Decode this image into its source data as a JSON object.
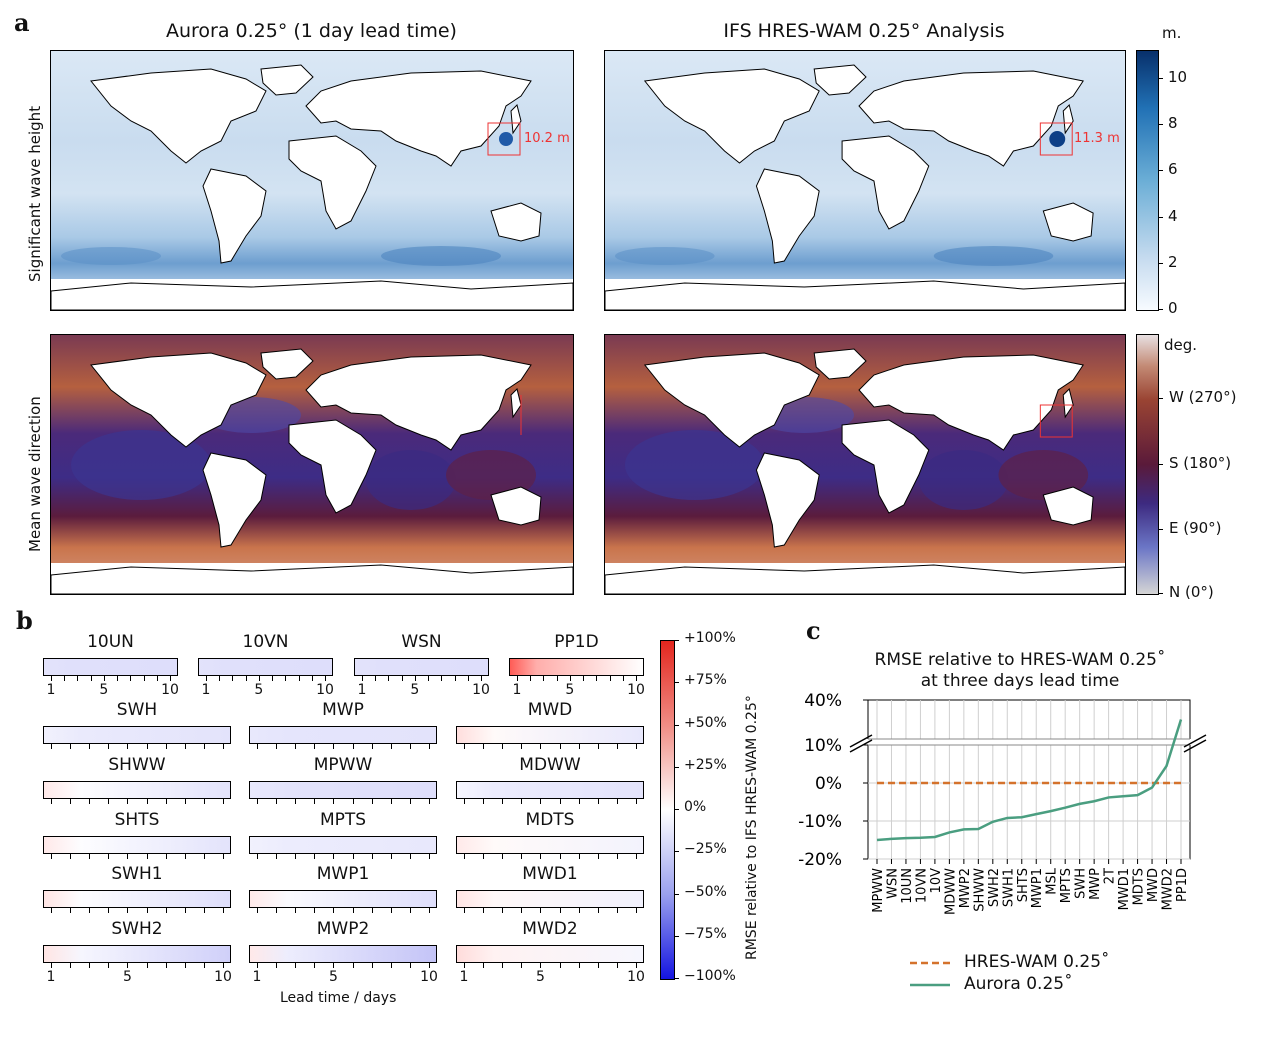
{
  "panel_a": {
    "label": "a",
    "left_title": "Aurora 0.25° (1 day lead time)",
    "right_title": "IFS HRES-WAM 0.25° Analysis",
    "row1_label": "Significant wave height",
    "row2_label": "Mean wave direction",
    "left_annotation": "10.2 m",
    "right_annotation": "11.3 m",
    "swh_colorbar": {
      "unit": "m.",
      "ticks": [
        "10",
        "8",
        "6",
        "4",
        "2",
        "0"
      ],
      "range": [
        0,
        11.2
      ],
      "colors": [
        "#f7fbff",
        "#c6dbef",
        "#6baed6",
        "#2171b5",
        "#08306b"
      ]
    },
    "mwd_colorbar": {
      "unit": "deg.",
      "ticks": [
        "W (270°)",
        "S (180°)",
        "E (90°)",
        "N (0°)"
      ],
      "colors": [
        "#e8e0e2",
        "#b5603f",
        "#5a1a3a",
        "#3d2a80",
        "#6b76c6",
        "#d5d5d5"
      ]
    }
  },
  "panel_b": {
    "label": "b",
    "xlabel": "Lead time / days",
    "colorbar_label": "RMSE relative to IFS HRES-WAM 0.25°",
    "colorbar_ticks": [
      "+100%",
      "+75%",
      "+50%",
      "+25%",
      "0%",
      "−25%",
      "−50%",
      "−75%",
      "−100%"
    ],
    "tick_labels": [
      "1",
      "5",
      "10"
    ],
    "row1": [
      {
        "name": "10UN",
        "start": -0.12,
        "end": -0.14
      },
      {
        "name": "10VN",
        "start": -0.12,
        "end": -0.14
      },
      {
        "name": "WSN",
        "start": -0.12,
        "end": -0.14
      },
      {
        "name": "PP1D",
        "start": 0.75,
        "end": 0.0
      }
    ],
    "rows": [
      [
        {
          "name": "SWH",
          "start": -0.06,
          "end": -0.12
        },
        {
          "name": "MWP",
          "start": -0.1,
          "end": -0.12
        },
        {
          "name": "MWD",
          "start": 0.15,
          "end": -0.1
        }
      ],
      [
        {
          "name": "SHWW",
          "start": 0.1,
          "end": -0.12
        },
        {
          "name": "MPWW",
          "start": -0.1,
          "end": -0.14
        },
        {
          "name": "MDWW",
          "start": -0.04,
          "end": -0.12
        }
      ],
      [
        {
          "name": "SHTS",
          "start": 0.1,
          "end": -0.12
        },
        {
          "name": "MPTS",
          "start": -0.06,
          "end": -0.1
        },
        {
          "name": "MDTS",
          "start": 0.1,
          "end": -0.05
        }
      ],
      [
        {
          "name": "SWH1",
          "start": 0.12,
          "end": -0.14
        },
        {
          "name": "MWP1",
          "start": 0.1,
          "end": -0.14
        },
        {
          "name": "MWD1",
          "start": 0.12,
          "end": -0.06
        }
      ],
      [
        {
          "name": "SWH2",
          "start": 0.12,
          "end": -0.2
        },
        {
          "name": "MWP2",
          "start": 0.1,
          "end": -0.25
        },
        {
          "name": "MWD2",
          "start": 0.16,
          "end": -0.04
        }
      ]
    ]
  },
  "chart_data": {
    "label": "c",
    "type": "line",
    "title": "RMSE relative to HRES-WAM 0.25$^\\circ$\nat three days lead time",
    "title_display": [
      "RMSE relative to HRES-WAM 0.25˚",
      "at three days lead time"
    ],
    "y_ticks": [
      "40%",
      "10%",
      "0%",
      "-10%",
      "-20%"
    ],
    "ylim": [
      -20,
      10
    ],
    "categories": [
      "MPWW",
      "WSN",
      "10UN",
      "10VN",
      "10V",
      "MDWW",
      "MWP2",
      "SHWW",
      "SWH2",
      "SWH1",
      "SHTS",
      "MWP1",
      "MSL",
      "MPTS",
      "SWH",
      "MWP",
      "2T",
      "MWD1",
      "MDTS",
      "MWD",
      "MWD2",
      "PP1D"
    ],
    "series": [
      {
        "name": "HRES-WAM 0.25˚",
        "color": "#d4722c",
        "style": "dashed",
        "values": [
          0,
          0,
          0,
          0,
          0,
          0,
          0,
          0,
          0,
          0,
          0,
          0,
          0,
          0,
          0,
          0,
          0,
          0,
          0,
          0,
          0,
          0
        ]
      },
      {
        "name": "Aurora 0.25˚",
        "color": "#4a9e80",
        "style": "solid",
        "values": [
          -15,
          -14.7,
          -14.5,
          -14.4,
          -14.2,
          -13,
          -12.2,
          -12.1,
          -10.2,
          -9.2,
          -9,
          -8.2,
          -7.4,
          -6.5,
          -5.5,
          -4.8,
          -3.8,
          -3.5,
          -3.2,
          -1.2,
          4.5,
          27
        ]
      }
    ]
  }
}
